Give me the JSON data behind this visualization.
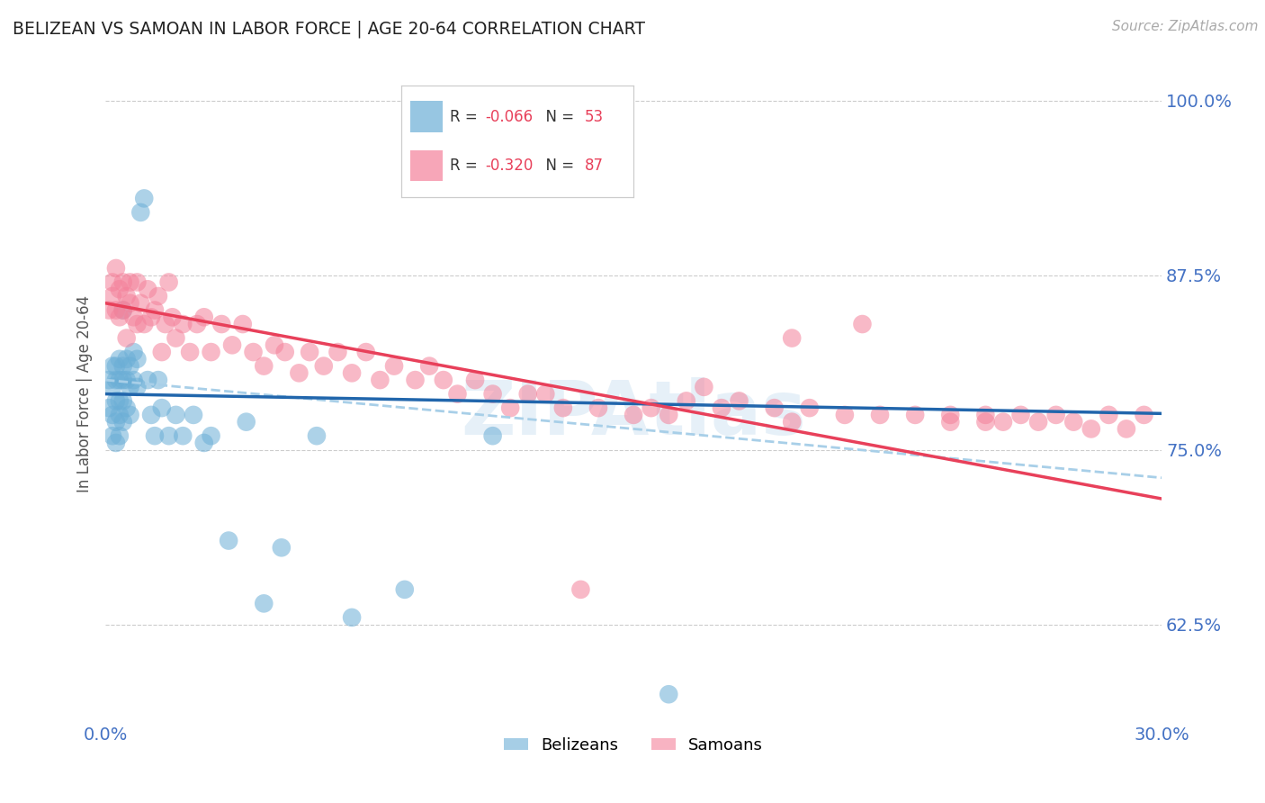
{
  "title": "BELIZEAN VS SAMOAN IN LABOR FORCE | AGE 20-64 CORRELATION CHART",
  "source": "Source: ZipAtlas.com",
  "ylabel": "In Labor Force | Age 20-64",
  "xlim": [
    0.0,
    0.3
  ],
  "ylim": [
    0.555,
    1.025
  ],
  "yticks": [
    0.625,
    0.75,
    0.875,
    1.0
  ],
  "ytick_labels": [
    "62.5%",
    "75.0%",
    "87.5%",
    "100.0%"
  ],
  "xticks": [
    0.0,
    0.05,
    0.1,
    0.15,
    0.2,
    0.25,
    0.3
  ],
  "xtick_labels": [
    "0.0%",
    "",
    "",
    "",
    "",
    "",
    "30.0%"
  ],
  "r_belizean": -0.066,
  "n_belizean": 53,
  "r_samoan": -0.32,
  "n_samoan": 87,
  "belizean_color": "#6baed6",
  "samoan_color": "#f4819a",
  "trend_belizean_color": "#2166ac",
  "trend_samoan_color": "#e8405a",
  "trend_dashed_color": "#a8cfe8",
  "tick_label_color": "#4472c4",
  "watermark": "ZIPAtlas",
  "belizean_x": [
    0.001,
    0.001,
    0.002,
    0.002,
    0.002,
    0.002,
    0.003,
    0.003,
    0.003,
    0.003,
    0.003,
    0.004,
    0.004,
    0.004,
    0.004,
    0.004,
    0.005,
    0.005,
    0.005,
    0.005,
    0.005,
    0.006,
    0.006,
    0.006,
    0.007,
    0.007,
    0.007,
    0.008,
    0.008,
    0.009,
    0.009,
    0.01,
    0.011,
    0.012,
    0.013,
    0.014,
    0.015,
    0.016,
    0.018,
    0.02,
    0.022,
    0.025,
    0.028,
    0.03,
    0.035,
    0.04,
    0.045,
    0.05,
    0.06,
    0.07,
    0.085,
    0.11,
    0.16
  ],
  "belizean_y": [
    0.8,
    0.78,
    0.81,
    0.795,
    0.775,
    0.76,
    0.81,
    0.8,
    0.785,
    0.77,
    0.755,
    0.815,
    0.8,
    0.785,
    0.775,
    0.76,
    0.81,
    0.8,
    0.785,
    0.77,
    0.85,
    0.815,
    0.8,
    0.78,
    0.81,
    0.795,
    0.775,
    0.82,
    0.8,
    0.815,
    0.795,
    0.92,
    0.93,
    0.8,
    0.775,
    0.76,
    0.8,
    0.78,
    0.76,
    0.775,
    0.76,
    0.775,
    0.755,
    0.76,
    0.685,
    0.77,
    0.64,
    0.68,
    0.76,
    0.63,
    0.65,
    0.76,
    0.575
  ],
  "samoan_x": [
    0.001,
    0.002,
    0.002,
    0.003,
    0.003,
    0.004,
    0.004,
    0.005,
    0.005,
    0.006,
    0.006,
    0.007,
    0.007,
    0.008,
    0.009,
    0.009,
    0.01,
    0.011,
    0.012,
    0.013,
    0.014,
    0.015,
    0.016,
    0.017,
    0.018,
    0.019,
    0.02,
    0.022,
    0.024,
    0.026,
    0.028,
    0.03,
    0.033,
    0.036,
    0.039,
    0.042,
    0.045,
    0.048,
    0.051,
    0.055,
    0.058,
    0.062,
    0.066,
    0.07,
    0.074,
    0.078,
    0.082,
    0.088,
    0.092,
    0.096,
    0.1,
    0.105,
    0.11,
    0.115,
    0.12,
    0.125,
    0.13,
    0.135,
    0.14,
    0.15,
    0.155,
    0.16,
    0.165,
    0.17,
    0.175,
    0.18,
    0.19,
    0.195,
    0.2,
    0.21,
    0.22,
    0.23,
    0.24,
    0.25,
    0.255,
    0.26,
    0.265,
    0.27,
    0.275,
    0.28,
    0.285,
    0.29,
    0.295,
    0.25,
    0.24,
    0.215,
    0.195
  ],
  "samoan_y": [
    0.85,
    0.87,
    0.86,
    0.88,
    0.85,
    0.865,
    0.845,
    0.87,
    0.85,
    0.86,
    0.83,
    0.855,
    0.87,
    0.845,
    0.87,
    0.84,
    0.855,
    0.84,
    0.865,
    0.845,
    0.85,
    0.86,
    0.82,
    0.84,
    0.87,
    0.845,
    0.83,
    0.84,
    0.82,
    0.84,
    0.845,
    0.82,
    0.84,
    0.825,
    0.84,
    0.82,
    0.81,
    0.825,
    0.82,
    0.805,
    0.82,
    0.81,
    0.82,
    0.805,
    0.82,
    0.8,
    0.81,
    0.8,
    0.81,
    0.8,
    0.79,
    0.8,
    0.79,
    0.78,
    0.79,
    0.79,
    0.78,
    0.65,
    0.78,
    0.775,
    0.78,
    0.775,
    0.785,
    0.795,
    0.78,
    0.785,
    0.78,
    0.77,
    0.78,
    0.775,
    0.775,
    0.775,
    0.77,
    0.775,
    0.77,
    0.775,
    0.77,
    0.775,
    0.77,
    0.765,
    0.775,
    0.765,
    0.775,
    0.77,
    0.775,
    0.84,
    0.83
  ],
  "trend_bel_x0": 0.0,
  "trend_bel_x1": 0.3,
  "trend_bel_y0": 0.79,
  "trend_bel_y1": 0.776,
  "trend_sam_x0": 0.0,
  "trend_sam_x1": 0.3,
  "trend_sam_y0": 0.855,
  "trend_sam_y1": 0.715,
  "trend_dash_x0": 0.0,
  "trend_dash_x1": 0.3,
  "trend_dash_y0": 0.8,
  "trend_dash_y1": 0.73
}
